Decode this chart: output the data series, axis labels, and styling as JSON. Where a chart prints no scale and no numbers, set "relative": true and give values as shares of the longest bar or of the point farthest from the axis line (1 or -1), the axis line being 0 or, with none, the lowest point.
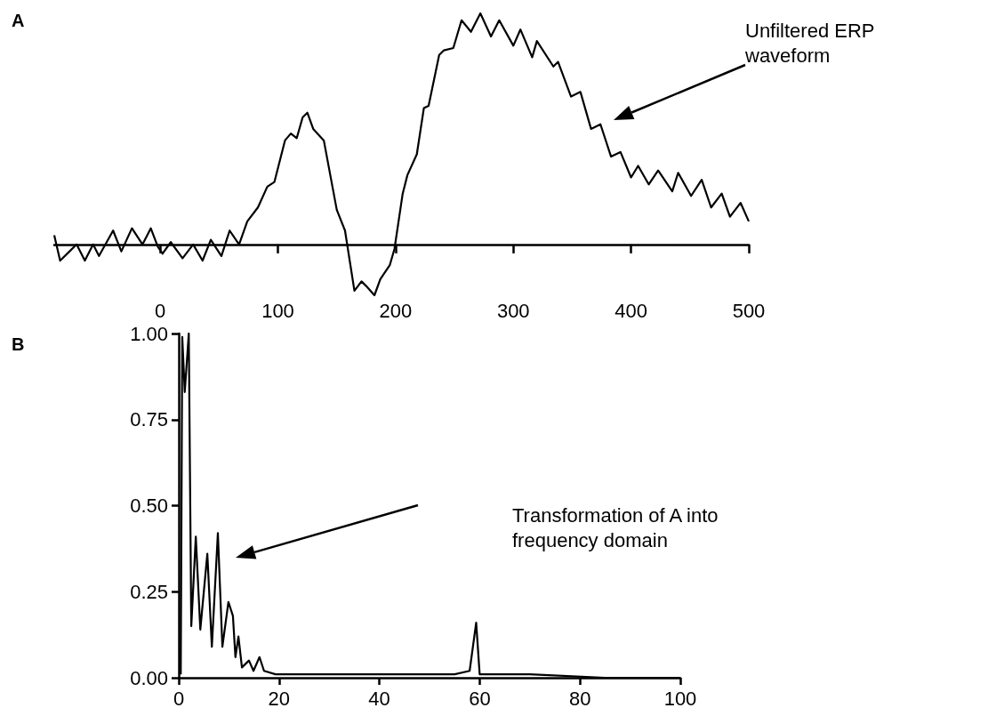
{
  "chart_data": [
    {
      "type": "line",
      "title": "A",
      "relative": true,
      "xlim": [
        -90,
        500
      ],
      "xticks": [
        0,
        100,
        200,
        300,
        400,
        500
      ],
      "tick_labels": "x",
      "grid": false,
      "marker": "none",
      "color": "#000000",
      "x": [
        -90,
        -85,
        -77,
        -71,
        -64,
        -57,
        -52,
        -40,
        -33,
        -24,
        -15,
        -8,
        -2,
        2,
        9,
        19,
        28,
        36,
        43,
        52,
        59,
        67,
        74,
        83,
        91,
        97,
        106,
        111,
        116,
        121,
        125,
        130,
        139,
        150,
        157,
        165,
        171,
        175,
        182,
        187,
        195,
        199,
        206,
        210,
        218,
        224,
        228,
        237,
        241,
        249,
        256,
        264,
        272,
        281,
        288,
        300,
        306,
        316,
        320,
        334,
        338,
        349,
        357,
        366,
        374,
        383,
        391,
        400,
        406,
        415,
        423,
        435,
        440,
        451,
        460,
        468,
        477,
        484,
        493,
        500
      ],
      "values": [
        0.04,
        -0.07,
        -0.03,
        0,
        -0.07,
        0,
        -0.05,
        0.06,
        -0.03,
        0.07,
        0,
        0.07,
        -0.01,
        -0.04,
        0.01,
        -0.06,
        0,
        -0.07,
        0.02,
        -0.05,
        0.06,
        0,
        0.1,
        0.16,
        0.25,
        0.27,
        0.45,
        0.48,
        0.46,
        0.55,
        0.57,
        0.5,
        0.45,
        0.15,
        0.06,
        -0.2,
        -0.16,
        -0.18,
        -0.22,
        -0.15,
        -0.09,
        -0.02,
        0.22,
        0.3,
        0.39,
        0.59,
        0.6,
        0.82,
        0.84,
        0.85,
        0.97,
        0.92,
        1,
        0.9,
        0.97,
        0.86,
        0.93,
        0.81,
        0.88,
        0.77,
        0.79,
        0.64,
        0.66,
        0.5,
        0.52,
        0.38,
        0.4,
        0.29,
        0.34,
        0.26,
        0.32,
        0.23,
        0.31,
        0.21,
        0.28,
        0.16,
        0.22,
        0.12,
        0.18,
        0.1
      ],
      "annotations": [
        "Unfiltered ERP waveform"
      ]
    },
    {
      "type": "line",
      "title": "B",
      "xlim": [
        0,
        100
      ],
      "xticks": [
        0,
        20,
        40,
        60,
        80,
        100
      ],
      "ylim": [
        0,
        1
      ],
      "yticks": [
        {
          "value": 0,
          "label": "0.00"
        },
        {
          "value": 0.25,
          "label": "0.25"
        },
        {
          "value": 0.5,
          "label": "0.50"
        },
        {
          "value": 0.75,
          "label": "0.75"
        },
        {
          "value": 1,
          "label": "1.00"
        }
      ],
      "grid": false,
      "marker": "none",
      "color": "#000000",
      "x": [
        0.4,
        0.7,
        1.2,
        2,
        2.5,
        3.4,
        4.3,
        5.7,
        6.6,
        7.8,
        8.7,
        9.9,
        10.8,
        11.3,
        11.9,
        12.6,
        14,
        14.9,
        16.1,
        17,
        19.3,
        25,
        40,
        55,
        58,
        59.3,
        60,
        70,
        85,
        100
      ],
      "values": [
        0.01,
        0.99,
        0.83,
        1,
        0.15,
        0.41,
        0.14,
        0.36,
        0.09,
        0.42,
        0.09,
        0.22,
        0.18,
        0.06,
        0.12,
        0.03,
        0.05,
        0.02,
        0.06,
        0.02,
        0.01,
        0.01,
        0.01,
        0.01,
        0.02,
        0.16,
        0.01,
        0.01,
        0,
        0
      ],
      "annotations": [
        "Transformation of A into frequency domain"
      ]
    }
  ]
}
